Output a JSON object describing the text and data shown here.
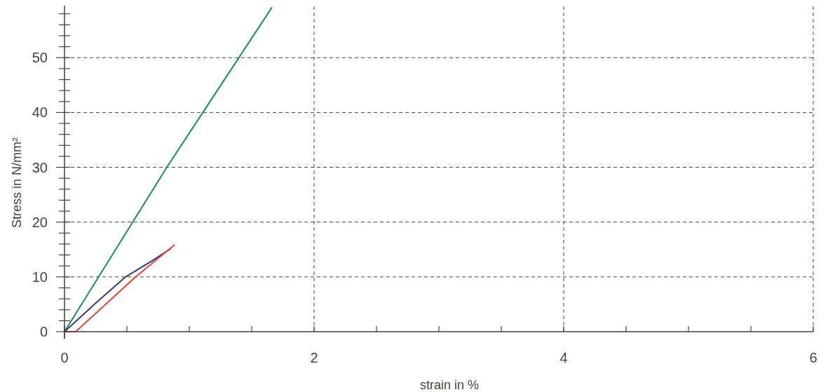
{
  "chart_data": {
    "type": "line",
    "xlabel": "strain in %",
    "ylabel": "Stress in N/mm²",
    "xlim": [
      0,
      6
    ],
    "ylim": [
      0,
      59.5
    ],
    "xticks": [
      0,
      {
        "value": 0.5,
        "label": null
      },
      {
        "value": 1,
        "label": null
      },
      {
        "value": 1.5,
        "label": null
      },
      2,
      {
        "value": 2.5,
        "label": null
      },
      {
        "value": 3,
        "label": null
      },
      {
        "value": 3.5,
        "label": null
      },
      4,
      {
        "value": 4.5,
        "label": null
      },
      {
        "value": 5,
        "label": null
      },
      {
        "value": 5.5,
        "label": null
      },
      6
    ],
    "yticks": [
      0,
      {
        "value": 2,
        "label": null
      },
      {
        "value": 4,
        "label": null
      },
      {
        "value": 6,
        "label": null
      },
      {
        "value": 8,
        "label": null
      },
      10,
      {
        "value": 12,
        "label": null
      },
      {
        "value": 14,
        "label": null
      },
      {
        "value": 16,
        "label": null
      },
      {
        "value": 18,
        "label": null
      },
      20,
      {
        "value": 22,
        "label": null
      },
      {
        "value": 24,
        "label": null
      },
      {
        "value": 26,
        "label": null
      },
      {
        "value": 28,
        "label": null
      },
      30,
      {
        "value": 32,
        "label": null
      },
      {
        "value": 34,
        "label": null
      },
      {
        "value": 36,
        "label": null
      },
      {
        "value": 38,
        "label": null
      },
      40,
      {
        "value": 42,
        "label": null
      },
      {
        "value": 44,
        "label": null
      },
      {
        "value": 46,
        "label": null
      },
      {
        "value": 48,
        "label": null
      },
      50,
      {
        "value": 52,
        "label": null
      },
      {
        "value": 54,
        "label": null
      },
      {
        "value": 56,
        "label": null
      },
      {
        "value": 58,
        "label": null
      }
    ],
    "grid": true,
    "series": [
      {
        "color": "#1a8f4e",
        "x": [
          0,
          0.82,
          1.66
        ],
        "values": [
          0,
          30,
          59.1
        ]
      },
      {
        "color": "#3b3680",
        "x": [
          0,
          0.25,
          0.49,
          0.7,
          0.848
        ],
        "values": [
          0,
          5.2,
          10,
          12.9,
          15.1
        ]
      },
      {
        "color": "#d9453a",
        "x": [
          0,
          0.09,
          0.57,
          0.88
        ],
        "values": [
          0,
          0,
          10,
          15.8
        ]
      }
    ]
  }
}
